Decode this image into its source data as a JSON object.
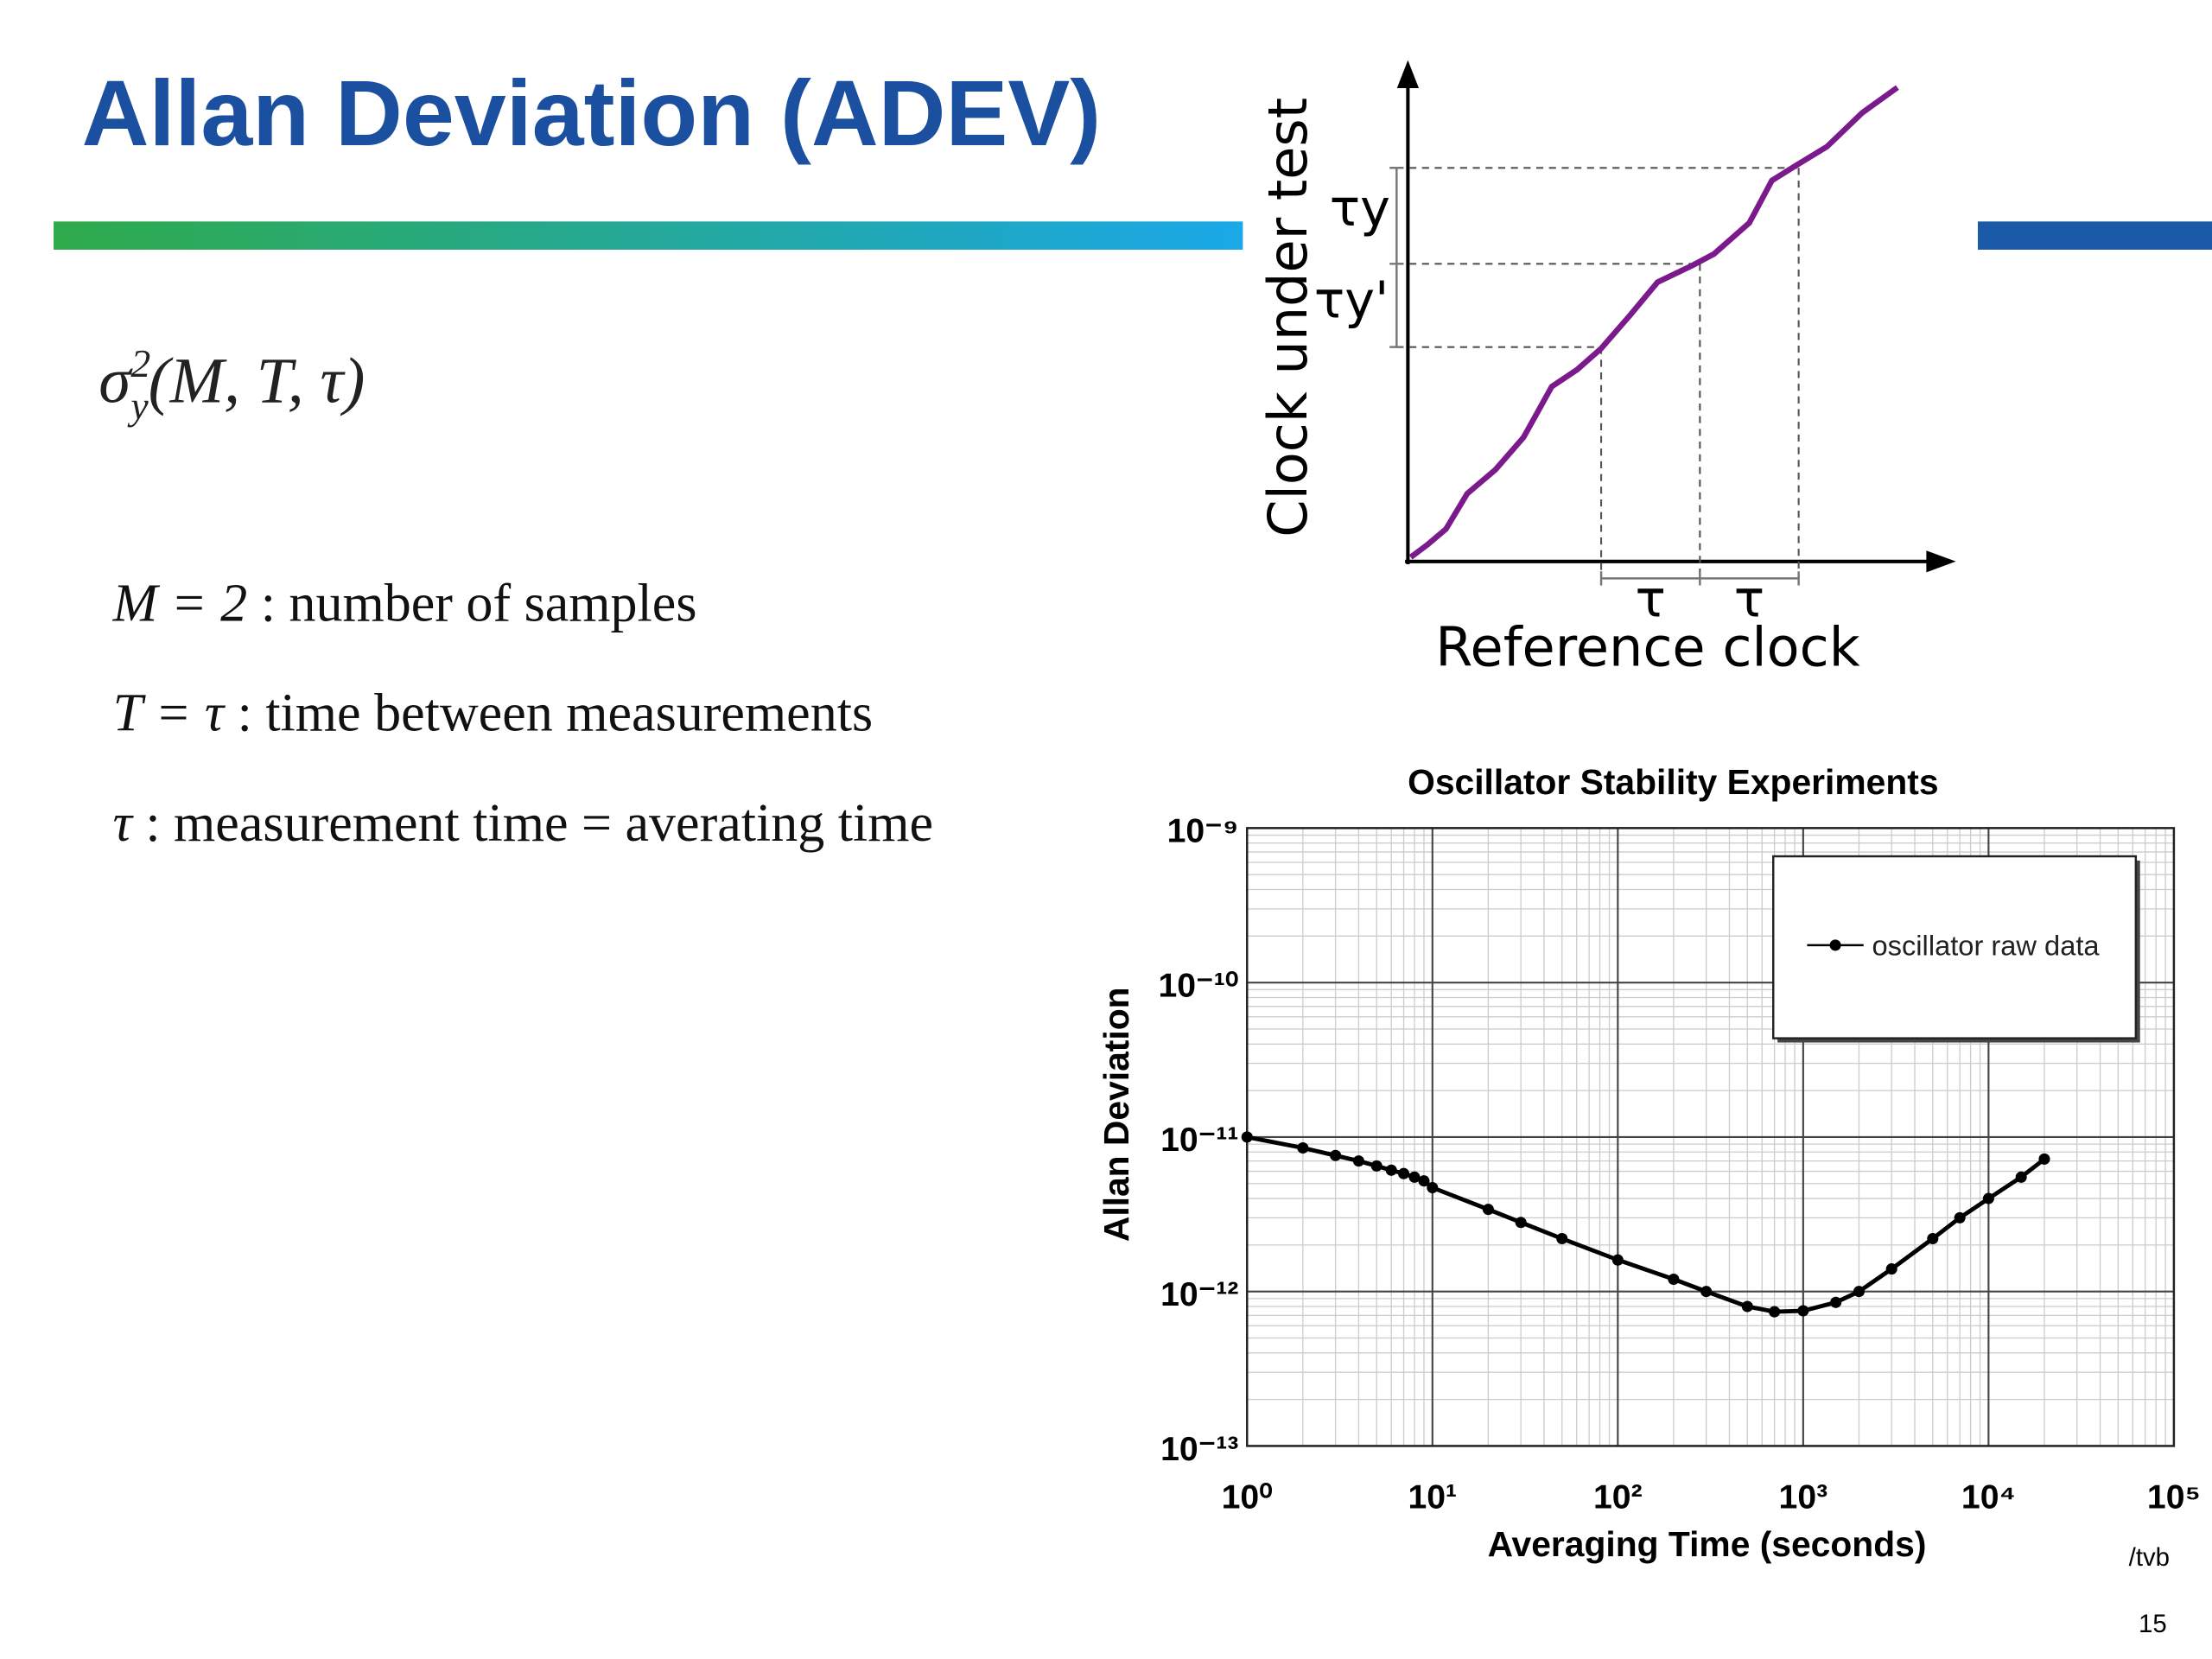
{
  "slide": {
    "title": "Allan Deviation (ADEV)",
    "formula": {
      "symbol": "σ",
      "subscript": "y",
      "superscript": "2",
      "arguments": "(M, T, τ)"
    },
    "definitions": [
      {
        "term": "M = 2",
        "text": " : number of samples"
      },
      {
        "term": "T = τ",
        "text": " : time between measurements"
      },
      {
        "term": "τ",
        "text": " : measurement time = averating time"
      }
    ],
    "diagram": {
      "y_label": "Clock under test",
      "x_label": "Reference clock",
      "interval_y": "τy",
      "interval_y_prime": "τy'",
      "interval_1": "τ",
      "interval_2": "τ"
    },
    "credit": "/tvb",
    "page_number": "15"
  },
  "chart_data": {
    "type": "line",
    "title": "Oscillator Stability Experiments",
    "x_label": "Averaging Time (seconds)",
    "y_label": "Allan Deviation",
    "log_x": true,
    "log_y": true,
    "grid": true,
    "minor_grid": true,
    "legend": "upper right",
    "xlim": [
      1,
      100000
    ],
    "ylim": [
      1e-13,
      1e-09
    ],
    "xticks": [
      {
        "value": 1,
        "label": "10⁰"
      },
      {
        "value": 10,
        "label": "10¹"
      },
      {
        "value": 100,
        "label": "10²"
      },
      {
        "value": 1000,
        "label": "10³"
      },
      {
        "value": 10000,
        "label": "10⁴"
      },
      {
        "value": 100000,
        "label": "10⁵"
      }
    ],
    "yticks": [
      {
        "value": 1e-13,
        "label": "10⁻¹³"
      },
      {
        "value": 1e-12,
        "label": "10⁻¹²"
      },
      {
        "value": 1e-11,
        "label": "10⁻¹¹"
      },
      {
        "value": 1e-10,
        "label": "10⁻¹⁰"
      },
      {
        "value": 1e-09,
        "label": "10⁻⁹"
      }
    ],
    "x": [
      1,
      2,
      3,
      4,
      5,
      6,
      7,
      8,
      9,
      10,
      20,
      30,
      50,
      100,
      200,
      300,
      500,
      700,
      1000,
      1500,
      2000,
      3000,
      5000,
      7000,
      10000,
      15000,
      20000
    ],
    "series": [
      {
        "name": "oscillator raw data",
        "color": "#000000",
        "values": [
          1e-11,
          8.5e-12,
          7.6e-12,
          7e-12,
          6.5e-12,
          6.1e-12,
          5.8e-12,
          5.5e-12,
          5.2e-12,
          4.7e-12,
          3.4e-12,
          2.8e-12,
          2.2e-12,
          1.6e-12,
          1.2e-12,
          1e-12,
          8e-13,
          7.4e-13,
          7.5e-13,
          8.5e-13,
          1e-12,
          1.4e-12,
          2.2e-12,
          3e-12,
          4e-12,
          5.5e-12,
          7.2e-12
        ]
      }
    ]
  }
}
